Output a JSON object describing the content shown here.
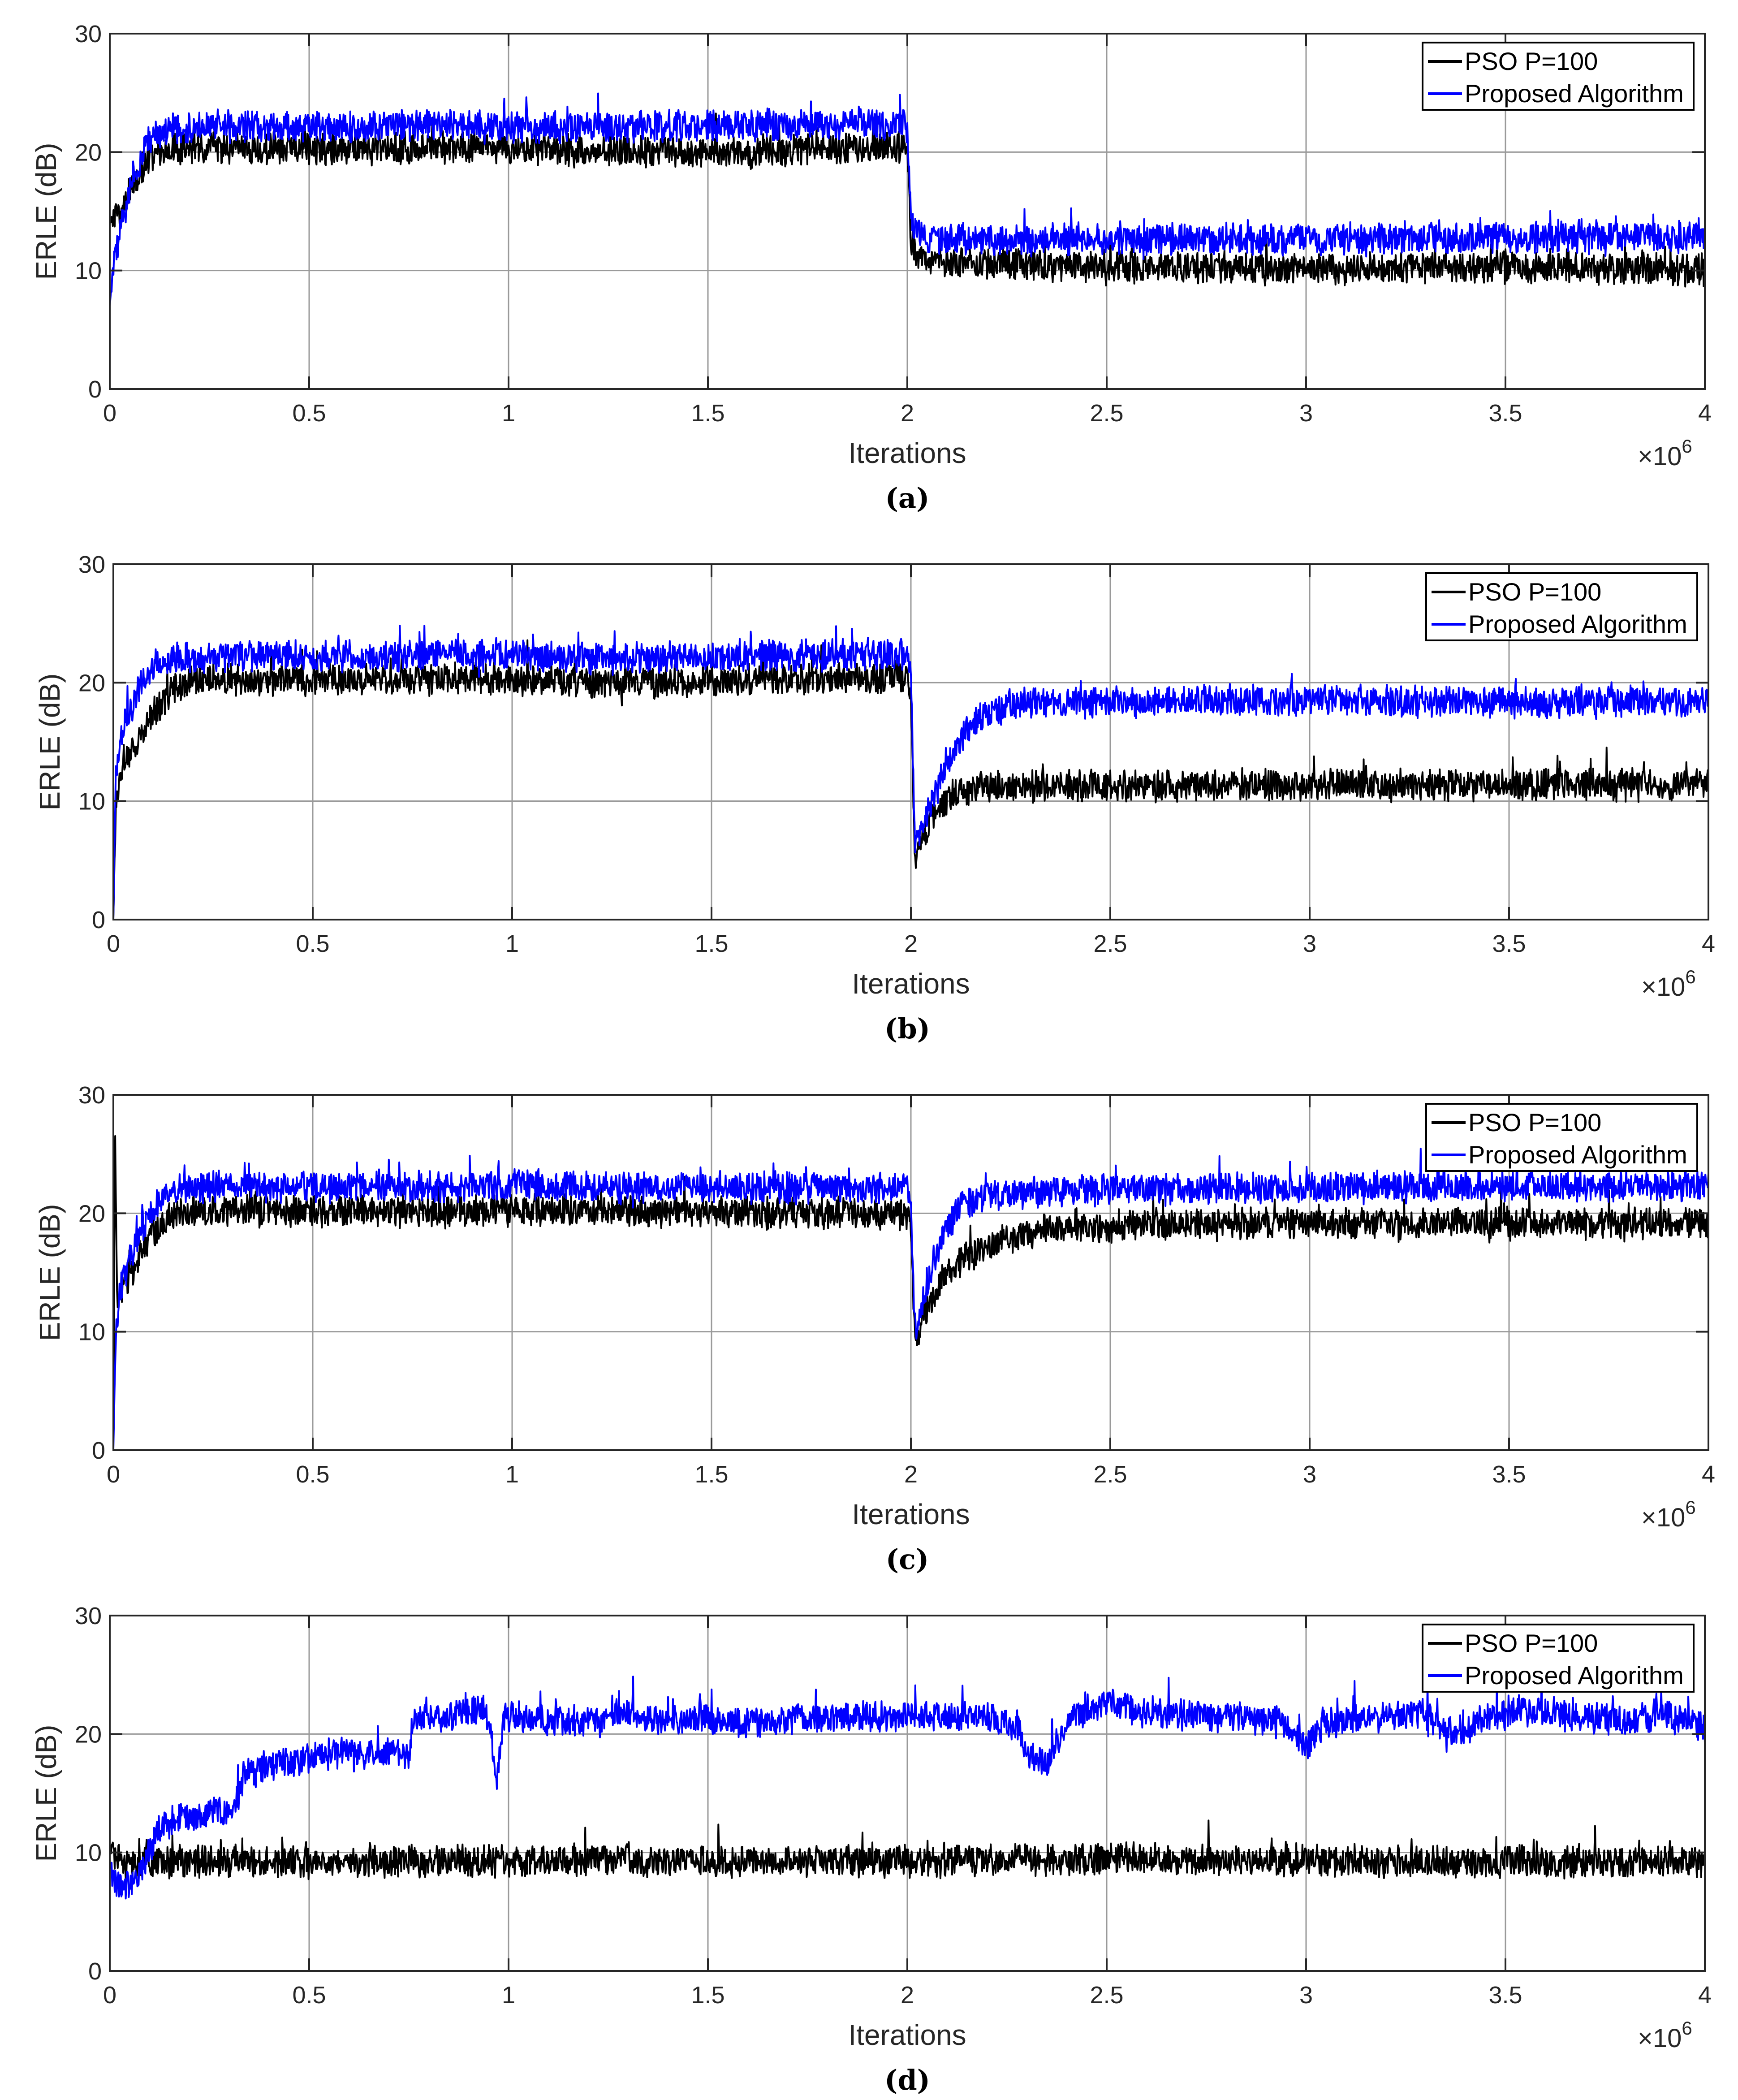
{
  "figure": {
    "colors": {
      "pso": "#000000",
      "proposed": "#0000ff",
      "grid": "#9a9a9a",
      "axis": "#262626"
    }
  },
  "chart_data": [
    {
      "type": "line",
      "caption": "(a)",
      "xlabel": "Iterations",
      "ylabel": "ERLE (dB)",
      "xlim": [
        0,
        4000000
      ],
      "ylim": [
        0,
        30
      ],
      "x_ticks": [
        0,
        500000,
        1000000,
        1500000,
        2000000,
        2500000,
        3000000,
        3500000,
        4000000
      ],
      "x_tick_labels": [
        "0",
        "0.5",
        "1",
        "1.5",
        "2",
        "2.5",
        "3",
        "3.5",
        "4"
      ],
      "y_ticks": [
        0,
        10,
        20,
        30
      ],
      "y_tick_labels": [
        "0",
        "10",
        "20",
        "30"
      ],
      "x_exponent": "6",
      "grid": true,
      "legend": "top-right",
      "series": [
        {
          "name": "PSO P=100",
          "color": "#000000",
          "points": [
            [
              0,
              14
            ],
            [
              30000,
              15
            ],
            [
              60000,
              17.5
            ],
            [
              100000,
              19.5
            ],
            [
              150000,
              20.2
            ],
            [
              300000,
              20.3
            ],
            [
              500000,
              20.2
            ],
            [
              800000,
              20.4
            ],
            [
              1000000,
              20.3
            ],
            [
              1200000,
              20.1
            ],
            [
              1500000,
              19.9
            ],
            [
              1800000,
              20.3
            ],
            [
              1990000,
              20.4
            ],
            [
              2000000,
              20.2
            ],
            [
              2010000,
              12
            ],
            [
              2030000,
              11
            ],
            [
              2100000,
              10.6
            ],
            [
              2500000,
              10.3
            ],
            [
              3000000,
              10.2
            ],
            [
              3500000,
              10.3
            ],
            [
              4000000,
              10.1
            ]
          ]
        },
        {
          "name": "Proposed Algorithm",
          "color": "#0000ff",
          "points": [
            [
              0,
              7
            ],
            [
              10000,
              11
            ],
            [
              30000,
              14
            ],
            [
              60000,
              18
            ],
            [
              100000,
              21
            ],
            [
              150000,
              22
            ],
            [
              300000,
              22.2
            ],
            [
              500000,
              22.1
            ],
            [
              800000,
              22.3
            ],
            [
              1000000,
              22.2
            ],
            [
              1200000,
              22.1
            ],
            [
              1500000,
              22.2
            ],
            [
              1800000,
              22.3
            ],
            [
              1990000,
              22.3
            ],
            [
              2000000,
              22
            ],
            [
              2010000,
              14
            ],
            [
              2040000,
              12.8
            ],
            [
              2100000,
              12.6
            ],
            [
              2500000,
              12.7
            ],
            [
              3000000,
              12.6
            ],
            [
              3500000,
              12.8
            ],
            [
              4000000,
              12.9
            ]
          ]
        }
      ]
    },
    {
      "type": "line",
      "caption": "(b)",
      "xlabel": "Iterations",
      "ylabel": "ERLE (dB)",
      "xlim": [
        0,
        4000000
      ],
      "ylim": [
        0,
        30
      ],
      "x_ticks": [
        0,
        500000,
        1000000,
        1500000,
        2000000,
        2500000,
        3000000,
        3500000,
        4000000
      ],
      "x_tick_labels": [
        "0",
        "0.5",
        "1",
        "1.5",
        "2",
        "2.5",
        "3",
        "3.5",
        "4"
      ],
      "y_ticks": [
        0,
        10,
        20,
        30
      ],
      "y_tick_labels": [
        "0",
        "10",
        "20",
        "30"
      ],
      "x_exponent": "6",
      "grid": true,
      "legend": "top-right",
      "series": [
        {
          "name": "PSO P=100",
          "color": "#000000",
          "points": [
            [
              0,
              0
            ],
            [
              6000,
              10
            ],
            [
              20000,
              13
            ],
            [
              60000,
              15
            ],
            [
              100000,
              17.5
            ],
            [
              150000,
              19.5
            ],
            [
              200000,
              20.2
            ],
            [
              500000,
              20.2
            ],
            [
              800000,
              20.3
            ],
            [
              1000000,
              20.3
            ],
            [
              1200000,
              20
            ],
            [
              1500000,
              20.1
            ],
            [
              1800000,
              20.3
            ],
            [
              1990000,
              20.4
            ],
            [
              2000000,
              19.5
            ],
            [
              2010000,
              5
            ],
            [
              2030000,
              7
            ],
            [
              2060000,
              9
            ],
            [
              2100000,
              10.5
            ],
            [
              2150000,
              11.2
            ],
            [
              2500000,
              11.3
            ],
            [
              3000000,
              11.3
            ],
            [
              3500000,
              11.4
            ],
            [
              4000000,
              11.4
            ]
          ]
        },
        {
          "name": "Proposed Algorithm",
          "color": "#0000ff",
          "points": [
            [
              0,
              0
            ],
            [
              6000,
              12
            ],
            [
              20000,
              16
            ],
            [
              60000,
              19
            ],
            [
              100000,
              21.5
            ],
            [
              150000,
              22.2
            ],
            [
              300000,
              22.2
            ],
            [
              500000,
              22.2
            ],
            [
              800000,
              22.4
            ],
            [
              1000000,
              22.4
            ],
            [
              1200000,
              22
            ],
            [
              1500000,
              22.2
            ],
            [
              1800000,
              22.3
            ],
            [
              1990000,
              22.4
            ],
            [
              2000000,
              21
            ],
            [
              2010000,
              6
            ],
            [
              2040000,
              9
            ],
            [
              2080000,
              12
            ],
            [
              2120000,
              15
            ],
            [
              2170000,
              17
            ],
            [
              2250000,
              18.2
            ],
            [
              2500000,
              18.4
            ],
            [
              3000000,
              18.5
            ],
            [
              3500000,
              18.3
            ],
            [
              4000000,
              18.4
            ]
          ]
        }
      ]
    },
    {
      "type": "line",
      "caption": "(c)",
      "xlabel": "Iterations",
      "ylabel": "ERLE (dB)",
      "xlim": [
        0,
        4000000
      ],
      "ylim": [
        0,
        30
      ],
      "x_ticks": [
        0,
        500000,
        1000000,
        1500000,
        2000000,
        2500000,
        3000000,
        3500000,
        4000000
      ],
      "x_tick_labels": [
        "0",
        "0.5",
        "1",
        "1.5",
        "2",
        "2.5",
        "3",
        "3.5",
        "4"
      ],
      "y_ticks": [
        0,
        10,
        20,
        30
      ],
      "y_tick_labels": [
        "0",
        "10",
        "20",
        "30"
      ],
      "x_exponent": "6",
      "grid": true,
      "legend": "top-right",
      "series": [
        {
          "name": "PSO P=100",
          "color": "#000000",
          "points": [
            [
              0,
              0
            ],
            [
              4000,
              28
            ],
            [
              10000,
              12
            ],
            [
              30000,
              14
            ],
            [
              60000,
              16
            ],
            [
              100000,
              18.5
            ],
            [
              150000,
              19.8
            ],
            [
              200000,
              20.1
            ],
            [
              500000,
              20.2
            ],
            [
              800000,
              20.1
            ],
            [
              1000000,
              20.3
            ],
            [
              1200000,
              20.2
            ],
            [
              1500000,
              20.1
            ],
            [
              1800000,
              20
            ],
            [
              1990000,
              20
            ],
            [
              2000000,
              19.5
            ],
            [
              2010000,
              9
            ],
            [
              2040000,
              12
            ],
            [
              2080000,
              14.5
            ],
            [
              2150000,
              16.5
            ],
            [
              2250000,
              18
            ],
            [
              2400000,
              18.8
            ],
            [
              2600000,
              19
            ],
            [
              3000000,
              19.1
            ],
            [
              3500000,
              19.2
            ],
            [
              4000000,
              19.1
            ]
          ]
        },
        {
          "name": "Proposed Algorithm",
          "color": "#0000ff",
          "points": [
            [
              0,
              0
            ],
            [
              6000,
              10
            ],
            [
              20000,
              14
            ],
            [
              60000,
              18
            ],
            [
              100000,
              20.5
            ],
            [
              150000,
              22
            ],
            [
              300000,
              22.3
            ],
            [
              500000,
              22.2
            ],
            [
              800000,
              22.3
            ],
            [
              1000000,
              22.4
            ],
            [
              1200000,
              22.2
            ],
            [
              1500000,
              22.2
            ],
            [
              1800000,
              22.1
            ],
            [
              1990000,
              22.2
            ],
            [
              2000000,
              21
            ],
            [
              2010000,
              10
            ],
            [
              2040000,
              14
            ],
            [
              2080000,
              18
            ],
            [
              2120000,
              20.5
            ],
            [
              2200000,
              21.5
            ],
            [
              2500000,
              22
            ],
            [
              3000000,
              22.2
            ],
            [
              3500000,
              22.3
            ],
            [
              4000000,
              22.3
            ]
          ]
        }
      ]
    },
    {
      "type": "line",
      "caption": "(d)",
      "xlabel": "Iterations",
      "ylabel": "ERLE (dB)",
      "xlim": [
        0,
        4000000
      ],
      "ylim": [
        0,
        30
      ],
      "x_ticks": [
        0,
        500000,
        1000000,
        1500000,
        2000000,
        2500000,
        3000000,
        3500000,
        4000000
      ],
      "x_tick_labels": [
        "0",
        "0.5",
        "1",
        "1.5",
        "2",
        "2.5",
        "3",
        "3.5",
        "4"
      ],
      "y_ticks": [
        0,
        10,
        20,
        30
      ],
      "y_tick_labels": [
        "0",
        "10",
        "20",
        "30"
      ],
      "x_exponent": "6",
      "grid": true,
      "legend": "top-right",
      "series": [
        {
          "name": "PSO P=100",
          "color": "#000000",
          "points": [
            [
              0,
              10
            ],
            [
              20000,
              9.5
            ],
            [
              50000,
              8.8
            ],
            [
              100000,
              9.2
            ],
            [
              500000,
              9.2
            ],
            [
              1000000,
              9.3
            ],
            [
              1500000,
              9.3
            ],
            [
              2000000,
              9.2
            ],
            [
              2500000,
              9.5
            ],
            [
              3000000,
              9.3
            ],
            [
              3500000,
              9.2
            ],
            [
              4000000,
              9.2
            ]
          ]
        },
        {
          "name": "Proposed Algorithm",
          "color": "#0000ff",
          "points": [
            [
              0,
              9
            ],
            [
              20000,
              7
            ],
            [
              60000,
              7.5
            ],
            [
              100000,
              10
            ],
            [
              120000,
              12
            ],
            [
              200000,
              13.2
            ],
            [
              300000,
              13.5
            ],
            [
              320000,
              14.5
            ],
            [
              340000,
              17
            ],
            [
              450000,
              17.6
            ],
            [
              550000,
              18.3
            ],
            [
              750000,
              18.2
            ],
            [
              760000,
              21
            ],
            [
              850000,
              21.6
            ],
            [
              940000,
              22.3
            ],
            [
              960000,
              19
            ],
            [
              970000,
              16
            ],
            [
              990000,
              21.5
            ],
            [
              1050000,
              21.2
            ],
            [
              1200000,
              21
            ],
            [
              1300000,
              22
            ],
            [
              1400000,
              21
            ],
            [
              1500000,
              21.5
            ],
            [
              1600000,
              20.8
            ],
            [
              1800000,
              21.4
            ],
            [
              2000000,
              21.6
            ],
            [
              2200000,
              21.5
            ],
            [
              2280000,
              20.5
            ],
            [
              2300000,
              18
            ],
            [
              2350000,
              17.5
            ],
            [
              2380000,
              19.5
            ],
            [
              2400000,
              21.5
            ],
            [
              2500000,
              22.5
            ],
            [
              2600000,
              21.8
            ],
            [
              2800000,
              21.4
            ],
            [
              2950000,
              21
            ],
            [
              3000000,
              19
            ],
            [
              3050000,
              21
            ],
            [
              3200000,
              21.5
            ],
            [
              3300000,
              21.6
            ],
            [
              3350000,
              20
            ],
            [
              3400000,
              20.3
            ],
            [
              3450000,
              21.5
            ],
            [
              3550000,
              22
            ],
            [
              3700000,
              21.4
            ],
            [
              3800000,
              21.2
            ],
            [
              3900000,
              21.6
            ],
            [
              4000000,
              20.5
            ]
          ]
        }
      ]
    }
  ]
}
